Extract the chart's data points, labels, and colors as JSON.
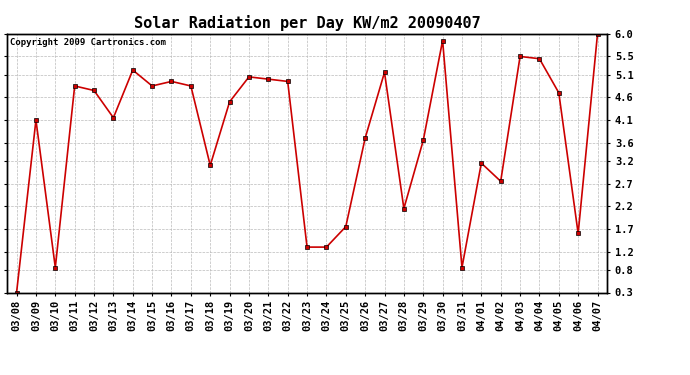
{
  "title": "Solar Radiation per Day KW/m2 20090407",
  "copyright": "Copyright 2009 Cartronics.com",
  "x_labels": [
    "03/08",
    "03/09",
    "03/10",
    "03/11",
    "03/12",
    "03/13",
    "03/14",
    "03/15",
    "03/16",
    "03/17",
    "03/18",
    "03/19",
    "03/20",
    "03/21",
    "03/22",
    "03/23",
    "03/24",
    "03/25",
    "03/26",
    "03/27",
    "03/28",
    "03/29",
    "03/30",
    "03/31",
    "04/01",
    "04/02",
    "04/03",
    "04/04",
    "04/05",
    "04/06",
    "04/07"
  ],
  "y_values": [
    0.3,
    4.1,
    0.85,
    4.85,
    4.75,
    4.15,
    5.2,
    4.85,
    4.95,
    4.85,
    3.1,
    4.5,
    5.05,
    5.0,
    4.95,
    1.3,
    1.3,
    1.75,
    3.7,
    5.15,
    2.15,
    3.65,
    5.85,
    0.85,
    3.15,
    2.75,
    5.5,
    5.45,
    4.7,
    1.6,
    6.0
  ],
  "line_color": "#cc0000",
  "marker_color": "#000000",
  "bg_color": "#ffffff",
  "grid_color": "#bbbbbb",
  "ylim": [
    0.3,
    6.0
  ],
  "yticks": [
    0.3,
    0.8,
    1.2,
    1.7,
    2.2,
    2.7,
    3.2,
    3.6,
    4.1,
    4.6,
    5.1,
    5.5,
    6.0
  ],
  "title_fontsize": 11,
  "copyright_fontsize": 6.5,
  "tick_fontsize": 7.5
}
